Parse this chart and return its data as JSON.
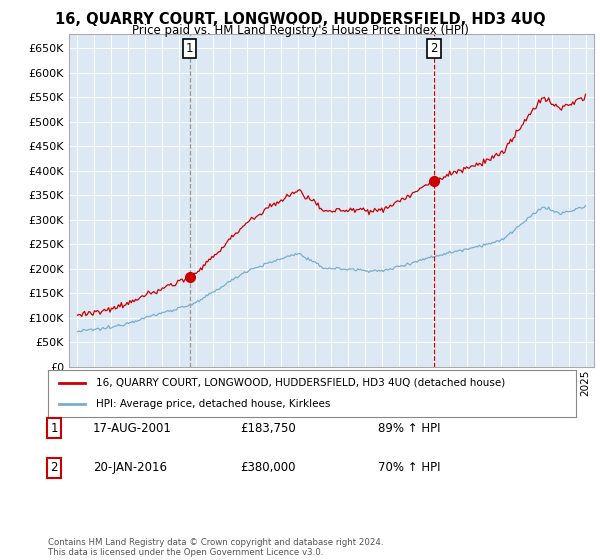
{
  "title": "16, QUARRY COURT, LONGWOOD, HUDDERSFIELD, HD3 4UQ",
  "subtitle": "Price paid vs. HM Land Registry's House Price Index (HPI)",
  "ylim": [
    0,
    680000
  ],
  "yticks": [
    0,
    50000,
    100000,
    150000,
    200000,
    250000,
    300000,
    350000,
    400000,
    450000,
    500000,
    550000,
    600000,
    650000
  ],
  "sale1_date": "17-AUG-2001",
  "sale1_price": 183750,
  "sale1_label": "1",
  "sale1_x": 2001.63,
  "sale2_date": "20-JAN-2016",
  "sale2_price": 380000,
  "sale2_label": "2",
  "sale2_x": 2016.05,
  "legend_property": "16, QUARRY COURT, LONGWOOD, HUDDERSFIELD, HD3 4UQ (detached house)",
  "legend_hpi": "HPI: Average price, detached house, Kirklees",
  "property_color": "#cc0000",
  "hpi_color": "#7aadcc",
  "vline1_color": "#999999",
  "vline2_color": "#cc0000",
  "chart_bg": "#dce9f5",
  "footnote": "Contains HM Land Registry data © Crown copyright and database right 2024.\nThis data is licensed under the Open Government Licence v3.0.",
  "table_rows": [
    [
      "1",
      "17-AUG-2001",
      "£183,750",
      "89% ↑ HPI"
    ],
    [
      "2",
      "20-JAN-2016",
      "£380,000",
      "70% ↑ HPI"
    ]
  ]
}
